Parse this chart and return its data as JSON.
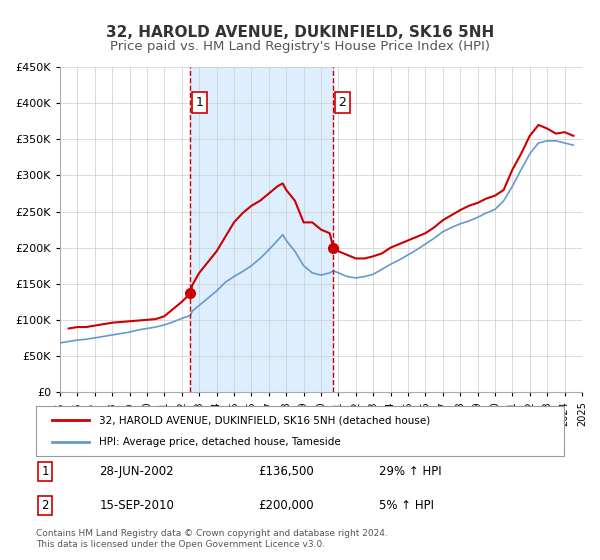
{
  "title": "32, HAROLD AVENUE, DUKINFIELD, SK16 5NH",
  "subtitle": "Price paid vs. HM Land Registry's House Price Index (HPI)",
  "xlim": [
    1995,
    2025
  ],
  "ylim": [
    0,
    450000
  ],
  "yticks": [
    0,
    50000,
    100000,
    150000,
    200000,
    250000,
    300000,
    350000,
    400000,
    450000
  ],
  "ytick_labels": [
    "£0",
    "£50K",
    "£100K",
    "£150K",
    "£200K",
    "£250K",
    "£300K",
    "£350K",
    "£400K",
    "£450K"
  ],
  "property_color": "#cc0000",
  "hpi_color": "#6699cc",
  "shade_color": "#ddeeff",
  "vline_color": "#cc0000",
  "marker1_x": 2002.49,
  "marker1_y": 136500,
  "marker2_x": 2010.71,
  "marker2_y": 200000,
  "vline1_x": 2002.49,
  "vline2_x": 2010.71,
  "legend_property": "32, HAROLD AVENUE, DUKINFIELD, SK16 5NH (detached house)",
  "legend_hpi": "HPI: Average price, detached house, Tameside",
  "annotation1_label": "1",
  "annotation1_date": "28-JUN-2002",
  "annotation1_price": "£136,500",
  "annotation1_hpi": "29% ↑ HPI",
  "annotation2_label": "2",
  "annotation2_date": "15-SEP-2010",
  "annotation2_price": "£200,000",
  "annotation2_hpi": "5% ↑ HPI",
  "footnote": "Contains HM Land Registry data © Crown copyright and database right 2024.\nThis data is licensed under the Open Government Licence v3.0.",
  "background_color": "#ffffff",
  "grid_color": "#cccccc",
  "title_fontsize": 11,
  "subtitle_fontsize": 9.5,
  "property_hpi_data": {
    "years_property": [
      1995.5,
      1996.0,
      1996.5,
      1997.0,
      1997.5,
      1998.0,
      1998.5,
      1999.0,
      1999.5,
      2000.0,
      2000.5,
      2001.0,
      2001.5,
      2002.0,
      2002.49,
      2002.6,
      2003.0,
      2003.5,
      2004.0,
      2004.5,
      2005.0,
      2005.5,
      2006.0,
      2006.5,
      2007.0,
      2007.5,
      2007.8,
      2008.0,
      2008.5,
      2009.0,
      2009.5,
      2010.0,
      2010.5,
      2010.71,
      2011.0,
      2011.5,
      2012.0,
      2012.5,
      2013.0,
      2013.5,
      2014.0,
      2014.5,
      2015.0,
      2015.5,
      2016.0,
      2016.5,
      2017.0,
      2017.5,
      2018.0,
      2018.5,
      2019.0,
      2019.5,
      2020.0,
      2020.5,
      2021.0,
      2021.5,
      2022.0,
      2022.5,
      2023.0,
      2023.5,
      2024.0,
      2024.5
    ],
    "values_property": [
      88000,
      90000,
      90000,
      92000,
      94000,
      96000,
      97000,
      98000,
      99000,
      100000,
      101000,
      105000,
      115000,
      125000,
      136500,
      148000,
      165000,
      180000,
      195000,
      215000,
      235000,
      248000,
      258000,
      265000,
      275000,
      285000,
      289000,
      280000,
      265000,
      235000,
      235000,
      225000,
      220000,
      200000,
      195000,
      190000,
      185000,
      185000,
      188000,
      192000,
      200000,
      205000,
      210000,
      215000,
      220000,
      228000,
      238000,
      245000,
      252000,
      258000,
      262000,
      268000,
      272000,
      280000,
      308000,
      330000,
      355000,
      370000,
      365000,
      358000,
      360000,
      355000
    ],
    "years_hpi": [
      1995.0,
      1995.5,
      1996.0,
      1996.5,
      1997.0,
      1997.5,
      1998.0,
      1998.5,
      1999.0,
      1999.5,
      2000.0,
      2000.5,
      2001.0,
      2001.5,
      2002.0,
      2002.49,
      2002.6,
      2003.0,
      2003.5,
      2004.0,
      2004.5,
      2005.0,
      2005.5,
      2006.0,
      2006.5,
      2007.0,
      2007.5,
      2007.8,
      2008.0,
      2008.5,
      2009.0,
      2009.5,
      2010.0,
      2010.5,
      2010.71,
      2011.0,
      2011.5,
      2012.0,
      2012.5,
      2013.0,
      2013.5,
      2014.0,
      2014.5,
      2015.0,
      2015.5,
      2016.0,
      2016.5,
      2017.0,
      2017.5,
      2018.0,
      2018.5,
      2019.0,
      2019.5,
      2020.0,
      2020.5,
      2021.0,
      2021.5,
      2022.0,
      2022.5,
      2023.0,
      2023.5,
      2024.0,
      2024.5
    ],
    "values_hpi": [
      68000,
      70000,
      72000,
      73000,
      75000,
      77000,
      79000,
      81000,
      83000,
      86000,
      88000,
      90000,
      93000,
      97000,
      102000,
      106000,
      112000,
      120000,
      130000,
      140000,
      152000,
      160000,
      167000,
      175000,
      185000,
      197000,
      210000,
      218000,
      210000,
      195000,
      175000,
      165000,
      162000,
      165000,
      168000,
      165000,
      160000,
      158000,
      160000,
      163000,
      170000,
      177000,
      183000,
      190000,
      197000,
      205000,
      213000,
      222000,
      228000,
      233000,
      237000,
      242000,
      248000,
      253000,
      265000,
      285000,
      308000,
      330000,
      345000,
      348000,
      348000,
      345000,
      342000
    ]
  }
}
